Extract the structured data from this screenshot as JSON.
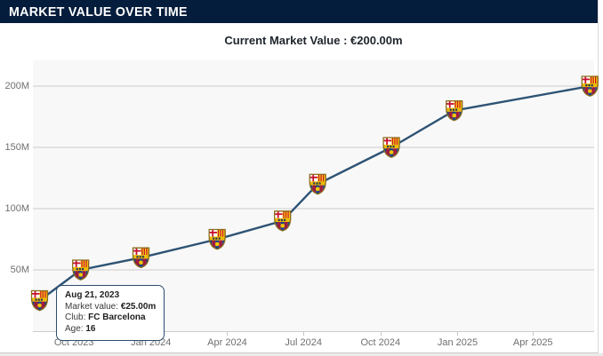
{
  "header": {
    "title": "MARKET VALUE OVER TIME"
  },
  "subtitle": {
    "text": "Current Market Value : €200.00m"
  },
  "tooltip": {
    "date": "Aug 21, 2023",
    "rows": [
      {
        "label": "Market value:",
        "value": "€25.00m"
      },
      {
        "label": "Club:",
        "value": "FC Barcelona"
      },
      {
        "label": "Age:",
        "value": "16"
      }
    ]
  },
  "chart_data": {
    "type": "line",
    "title": "MARKET VALUE OVER TIME",
    "current_value": "€200.00m",
    "x_type": "time",
    "x_domain": [
      "2023-08-13",
      "2025-06-13"
    ],
    "ylim": [
      0,
      221
    ],
    "grid": true,
    "legend": false,
    "marker": "fc-barcelona-crest",
    "y_ticks": [
      {
        "value": 50,
        "label": "50M"
      },
      {
        "value": 100,
        "label": "100M"
      },
      {
        "value": 150,
        "label": "150M"
      },
      {
        "value": 200,
        "label": "200M"
      }
    ],
    "x_ticks": [
      {
        "date": "2023-10-01",
        "label": "Oct 2023"
      },
      {
        "date": "2024-01-01",
        "label": "Jan 2024"
      },
      {
        "date": "2024-04-01",
        "label": "Apr 2024"
      },
      {
        "date": "2024-07-01",
        "label": "Jul 2024"
      },
      {
        "date": "2024-10-01",
        "label": "Oct 2024"
      },
      {
        "date": "2025-01-01",
        "label": "Jan 2025"
      },
      {
        "date": "2025-04-01",
        "label": "Apr 2025"
      }
    ],
    "series": [
      {
        "name": "Market value (€m)",
        "club": "FC Barcelona",
        "points": [
          {
            "date": "2023-08-21",
            "value": 25
          },
          {
            "date": "2023-10-09",
            "value": 50
          },
          {
            "date": "2023-12-20",
            "value": 60
          },
          {
            "date": "2024-03-20",
            "value": 75
          },
          {
            "date": "2024-06-06",
            "value": 90
          },
          {
            "date": "2024-07-18",
            "value": 120
          },
          {
            "date": "2024-10-14",
            "value": 150
          },
          {
            "date": "2024-12-28",
            "value": 180
          },
          {
            "date": "2025-06-08",
            "value": 200
          }
        ]
      }
    ]
  },
  "colors": {
    "header_bg": "#051d3c",
    "title_text": "#ffffff",
    "subtitle_text": "#20262e",
    "line": "#2e5374",
    "grid": "#cccccc",
    "panel_bg": "#f8f8f8",
    "axis_label": "#6f6f6f",
    "tooltip_border": "#2b4e6f",
    "crest_garnet": "#9e1b3c",
    "crest_blue": "#154284",
    "crest_yellow": "#fcdd09",
    "crest_red": "#c8102e",
    "crest_gold": "#8a6d1f"
  }
}
